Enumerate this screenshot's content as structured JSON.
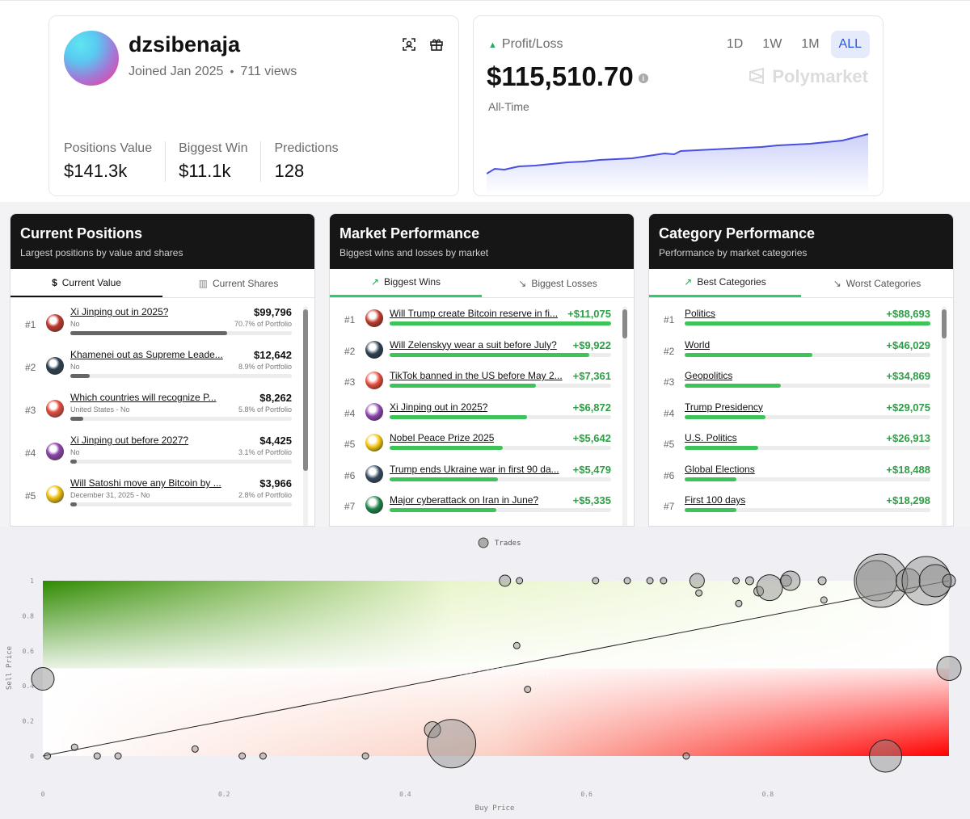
{
  "profile": {
    "username": "dzsibenaja",
    "joined": "Joined Jan 2025",
    "views": "711 views",
    "stats": [
      {
        "label": "Positions Value",
        "value": "$141.3k"
      },
      {
        "label": "Biggest Win",
        "value": "$11.1k"
      },
      {
        "label": "Predictions",
        "value": "128"
      }
    ]
  },
  "pnl": {
    "label": "Profit/Loss",
    "value": "$115,510.70",
    "period": "All-Time",
    "brand": "Polymarket",
    "ranges": [
      "1D",
      "1W",
      "1M",
      "ALL"
    ],
    "active_range": "ALL",
    "accent": "#4a4fe0"
  },
  "current_positions": {
    "title": "Current Positions",
    "subtitle": "Largest positions by value and shares",
    "tabs": [
      "Current Value",
      "Current Shares"
    ],
    "rows": [
      {
        "rank": "#1",
        "title": "Xi Jinping out in 2025?",
        "sub": "No",
        "value": "$99,796",
        "pct": "70.7% of Portfolio",
        "fill": 0.707
      },
      {
        "rank": "#2",
        "title": "Khamenei out as Supreme Leade...",
        "sub": "No",
        "value": "$12,642",
        "pct": "8.9% of Portfolio",
        "fill": 0.089
      },
      {
        "rank": "#3",
        "title": "Which countries will recognize P...",
        "sub": "United States - No",
        "value": "$8,262",
        "pct": "5.8% of Portfolio",
        "fill": 0.058
      },
      {
        "rank": "#4",
        "title": "Xi Jinping out before 2027?",
        "sub": "No",
        "value": "$4,425",
        "pct": "3.1% of Portfolio",
        "fill": 0.031
      },
      {
        "rank": "#5",
        "title": "Will Satoshi move any Bitcoin by ...",
        "sub": "December 31, 2025 - No",
        "value": "$3,966",
        "pct": "2.8% of Portfolio",
        "fill": 0.028
      }
    ]
  },
  "market_performance": {
    "title": "Market Performance",
    "subtitle": "Biggest wins and losses by market",
    "tabs": [
      "Biggest Wins",
      "Biggest Losses"
    ],
    "rows": [
      {
        "rank": "#1",
        "title": "Will Trump create Bitcoin reserve in fi...",
        "value": "+$11,075",
        "fill": 1.0
      },
      {
        "rank": "#2",
        "title": "Will Zelenskyy wear a suit before July?",
        "value": "+$9,922",
        "fill": 0.9
      },
      {
        "rank": "#3",
        "title": "TikTok banned in the US before May 2...",
        "value": "+$7,361",
        "fill": 0.66
      },
      {
        "rank": "#4",
        "title": "Xi Jinping out in 2025?",
        "value": "+$6,872",
        "fill": 0.62
      },
      {
        "rank": "#5",
        "title": "Nobel Peace Prize 2025",
        "value": "+$5,642",
        "fill": 0.51
      },
      {
        "rank": "#6",
        "title": "Trump ends Ukraine war in first 90 da...",
        "value": "+$5,479",
        "fill": 0.49
      },
      {
        "rank": "#7",
        "title": "Major cyberattack on Iran in June?",
        "value": "+$5,335",
        "fill": 0.48
      }
    ]
  },
  "category_performance": {
    "title": "Category Performance",
    "subtitle": "Performance by market categories",
    "tabs": [
      "Best Categories",
      "Worst Categories"
    ],
    "rows": [
      {
        "rank": "#1",
        "title": "Politics",
        "value": "+$88,693",
        "fill": 1.0
      },
      {
        "rank": "#2",
        "title": "World",
        "value": "+$46,029",
        "fill": 0.52
      },
      {
        "rank": "#3",
        "title": "Geopolitics",
        "value": "+$34,869",
        "fill": 0.39
      },
      {
        "rank": "#4",
        "title": "Trump Presidency",
        "value": "+$29,075",
        "fill": 0.33
      },
      {
        "rank": "#5",
        "title": "U.S. Politics",
        "value": "+$26,913",
        "fill": 0.3
      },
      {
        "rank": "#6",
        "title": "Global Elections",
        "value": "+$18,488",
        "fill": 0.21
      },
      {
        "rank": "#7",
        "title": "First 100 days",
        "value": "+$18,298",
        "fill": 0.21
      }
    ]
  },
  "chart_data": {
    "type": "scatter",
    "legend": "Trades",
    "watermark": "hashdive.com",
    "xlabel": "Buy Price",
    "ylabel": "Sell Price",
    "xlim": [
      0,
      1
    ],
    "ylim": [
      0,
      1
    ],
    "xticks": [
      "0",
      "0.2",
      "0.4",
      "0.6",
      "0.8"
    ],
    "yticks": [
      "0",
      "0.2",
      "0.4",
      "0.6",
      "0.8",
      "1"
    ],
    "points": [
      {
        "x": 0.0,
        "y": 0.44,
        "s": 14
      },
      {
        "x": 0.005,
        "y": 0.0,
        "s": 4
      },
      {
        "x": 0.035,
        "y": 0.05,
        "s": 4
      },
      {
        "x": 0.06,
        "y": 0.0,
        "s": 4
      },
      {
        "x": 0.083,
        "y": 0.0,
        "s": 4
      },
      {
        "x": 0.168,
        "y": 0.04,
        "s": 4
      },
      {
        "x": 0.22,
        "y": 0.0,
        "s": 4
      },
      {
        "x": 0.243,
        "y": 0.0,
        "s": 4
      },
      {
        "x": 0.356,
        "y": 0.0,
        "s": 4
      },
      {
        "x": 0.43,
        "y": 0.15,
        "s": 10
      },
      {
        "x": 0.451,
        "y": 0.07,
        "s": 30
      },
      {
        "x": 0.51,
        "y": 1.0,
        "s": 7
      },
      {
        "x": 0.523,
        "y": 0.63,
        "s": 4
      },
      {
        "x": 0.526,
        "y": 1.0,
        "s": 4
      },
      {
        "x": 0.535,
        "y": 0.38,
        "s": 4
      },
      {
        "x": 0.61,
        "y": 1.0,
        "s": 4
      },
      {
        "x": 0.645,
        "y": 1.0,
        "s": 4
      },
      {
        "x": 0.67,
        "y": 1.0,
        "s": 4
      },
      {
        "x": 0.685,
        "y": 1.0,
        "s": 4
      },
      {
        "x": 0.71,
        "y": 0.0,
        "s": 4
      },
      {
        "x": 0.722,
        "y": 1.0,
        "s": 9
      },
      {
        "x": 0.724,
        "y": 0.93,
        "s": 4
      },
      {
        "x": 0.765,
        "y": 1.0,
        "s": 4
      },
      {
        "x": 0.768,
        "y": 0.87,
        "s": 4
      },
      {
        "x": 0.78,
        "y": 1.0,
        "s": 5
      },
      {
        "x": 0.79,
        "y": 0.94,
        "s": 6
      },
      {
        "x": 0.802,
        "y": 0.96,
        "s": 16
      },
      {
        "x": 0.82,
        "y": 1.0,
        "s": 7
      },
      {
        "x": 0.825,
        "y": 1.0,
        "s": 12
      },
      {
        "x": 0.86,
        "y": 1.0,
        "s": 5
      },
      {
        "x": 0.862,
        "y": 0.89,
        "s": 4
      },
      {
        "x": 0.92,
        "y": 1.0,
        "s": 25
      },
      {
        "x": 0.925,
        "y": 1.0,
        "s": 33
      },
      {
        "x": 0.93,
        "y": 0.0,
        "s": 20
      },
      {
        "x": 0.955,
        "y": 1.0,
        "s": 15
      },
      {
        "x": 0.975,
        "y": 1.0,
        "s": 30
      },
      {
        "x": 0.985,
        "y": 1.0,
        "s": 20
      },
      {
        "x": 1.0,
        "y": 0.5,
        "s": 15
      },
      {
        "x": 1.0,
        "y": 1.0,
        "s": 8
      }
    ]
  }
}
